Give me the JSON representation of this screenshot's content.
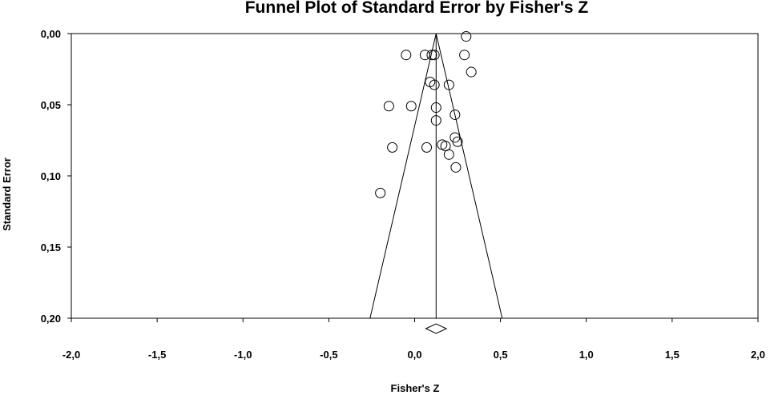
{
  "chart_data": {
    "type": "scatter",
    "title": "Funnel Plot of Standard Error by Fisher's Z",
    "xlabel": "Fisher's Z",
    "ylabel": "Standard Error",
    "xlim": [
      -2.0,
      2.0
    ],
    "ylim": [
      0.2,
      0.0
    ],
    "y_inverted": true,
    "xticks": [
      "-2,0",
      "-1,5",
      "-1,0",
      "-0,5",
      "0,0",
      "0,5",
      "1,0",
      "1,5",
      "2,0"
    ],
    "yticks": [
      "0,00",
      "0,05",
      "0,10",
      "0,15",
      "0,20"
    ],
    "x_tick_values": [
      -2.0,
      -1.5,
      -1.0,
      -0.5,
      0.0,
      0.5,
      1.0,
      1.5,
      2.0
    ],
    "y_tick_values": [
      0.0,
      0.05,
      0.1,
      0.15,
      0.2
    ],
    "pooled_estimate": 0.125,
    "funnel_bottom_left": -0.26,
    "funnel_bottom_right": 0.51,
    "diamond": {
      "center": 0.125,
      "lower": 0.065,
      "upper": 0.185
    },
    "series": [
      {
        "x": [
          0.3,
          0.06,
          0.1,
          0.115,
          -0.05,
          0.29,
          0.33,
          0.09,
          0.115,
          0.2,
          -0.15,
          -0.02,
          0.125,
          0.235,
          0.125,
          0.235,
          0.25,
          0.16,
          0.18,
          0.07,
          -0.13,
          0.2,
          0.24,
          -0.2
        ],
        "y": [
          0.002,
          0.015,
          0.015,
          0.015,
          0.015,
          0.015,
          0.027,
          0.034,
          0.036,
          0.036,
          0.051,
          0.051,
          0.052,
          0.057,
          0.061,
          0.073,
          0.076,
          0.078,
          0.079,
          0.08,
          0.08,
          0.085,
          0.094,
          0.112
        ]
      }
    ]
  }
}
